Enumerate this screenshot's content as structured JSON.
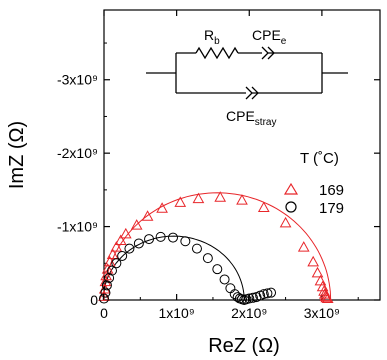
{
  "chart_data": {
    "type": "scatter",
    "title": "",
    "xlabel": "ReZ (Ω)",
    "ylabel": "ImZ (Ω)",
    "xlim": [
      0,
      3800000000.0
    ],
    "ylim": [
      0,
      -3950000000.0
    ],
    "x_ticks": [
      {
        "value": 0,
        "label": "0"
      },
      {
        "value": 1000000000.0,
        "label": "1x10⁹"
      },
      {
        "value": 2000000000.0,
        "label": "2x10⁹"
      },
      {
        "value": 3000000000.0,
        "label": "3x10⁹"
      }
    ],
    "y_ticks": [
      {
        "value": 0,
        "label": "0"
      },
      {
        "value": -1000000000.0,
        "label": "-1x10⁹"
      },
      {
        "value": -2000000000.0,
        "label": "-2x10⁹"
      },
      {
        "value": -3000000000.0,
        "label": "-3x10⁹"
      }
    ],
    "legend_title": "T (˚C)",
    "legend_position": "right",
    "series": [
      {
        "name": "169",
        "color": "#e8262a",
        "marker": "triangle",
        "x": [
          0.0,
          10000000.0,
          20000000.0,
          30000000.0,
          50000000.0,
          80000000.0,
          120000000.0,
          170000000.0,
          230000000.0,
          300000000.0,
          450000000.0,
          600000000.0,
          800000000.0,
          1050000000.0,
          1300000000.0,
          1600000000.0,
          1900000000.0,
          2200000000.0,
          2500000000.0,
          2750000000.0,
          2880000000.0,
          2940000000.0,
          2980000000.0,
          3010000000.0,
          3030000000.0,
          3040000000.0,
          3050000000.0,
          3060000000.0,
          3080000000.0
        ],
        "y": [
          -50000000.0,
          -150000000.0,
          -250000000.0,
          -330000000.0,
          -420000000.0,
          -520000000.0,
          -620000000.0,
          -720000000.0,
          -810000000.0,
          -900000000.0,
          -1020000000.0,
          -1140000000.0,
          -1250000000.0,
          -1330000000.0,
          -1380000000.0,
          -1400000000.0,
          -1360000000.0,
          -1260000000.0,
          -1050000000.0,
          -720000000.0,
          -520000000.0,
          -370000000.0,
          -260000000.0,
          -180000000.0,
          -120000000.0,
          -80000000.0,
          -50000000.0,
          -30000000.0,
          -20000000.0
        ],
        "fit_curve": {
          "center": 1560000000.0,
          "radius": 1560000000.0,
          "depression": 100000000.0
        }
      },
      {
        "name": "179",
        "color": "#000000",
        "marker": "circle",
        "x": [
          0.0,
          20000000.0,
          40000000.0,
          70000000.0,
          110000000.0,
          170000000.0,
          250000000.0,
          350000000.0,
          480000000.0,
          620000000.0,
          780000000.0,
          950000000.0,
          1120000000.0,
          1280000000.0,
          1430000000.0,
          1560000000.0,
          1660000000.0,
          1740000000.0,
          1800000000.0,
          1840000000.0,
          1870000000.0,
          1900000000.0,
          1930000000.0,
          1960000000.0,
          2000000000.0,
          2050000000.0,
          2100000000.0,
          2150000000.0,
          2200000000.0,
          2250000000.0,
          2300000000.0
        ],
        "y": [
          -20000000.0,
          -100000000.0,
          -200000000.0,
          -300000000.0,
          -400000000.0,
          -500000000.0,
          -600000000.0,
          -700000000.0,
          -770000000.0,
          -830000000.0,
          -860000000.0,
          -850000000.0,
          -800000000.0,
          -700000000.0,
          -570000000.0,
          -420000000.0,
          -280000000.0,
          -160000000.0,
          -80000000.0,
          -40000000.0,
          -20000000.0,
          -10000000.0,
          0.0,
          -10000000.0,
          -20000000.0,
          -30000000.0,
          -40000000.0,
          -60000000.0,
          -80000000.0,
          -90000000.0,
          -100000000.0
        ],
        "fit_curve": {
          "center": 960000000.0,
          "radius": 970000000.0,
          "depression": 100000000.0
        }
      }
    ],
    "inset_circuit": {
      "resistor_label": "R",
      "resistor_sub": "b",
      "cpe1_label": "CPE",
      "cpe1_sub": "e",
      "cpe2_label": "CPE",
      "cpe2_sub": "stray"
    }
  }
}
